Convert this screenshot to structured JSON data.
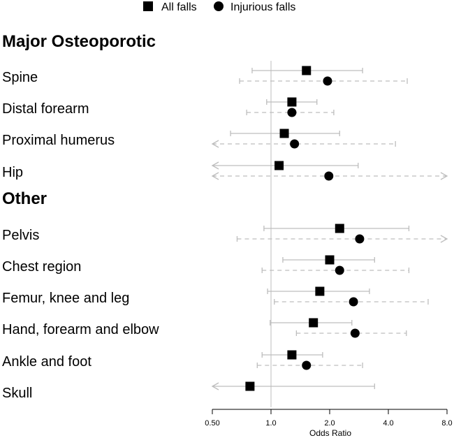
{
  "chart_data": {
    "type": "forest",
    "xlabel": "Odds Ratio",
    "x_scale": "log2",
    "xlim": [
      0.5,
      8.0
    ],
    "x_ticks": [
      {
        "value": 0.5,
        "label": "0.50"
      },
      {
        "value": 1.0,
        "label": "1.0"
      },
      {
        "value": 2.0,
        "label": "2.0"
      },
      {
        "value": 4.0,
        "label": "4.0"
      },
      {
        "value": 8.0,
        "label": "8.0"
      }
    ],
    "reference_line": 1.0,
    "legend": [
      {
        "name": "All falls",
        "marker": "square"
      },
      {
        "name": "Injurious falls",
        "marker": "circle"
      }
    ],
    "groups": [
      {
        "heading": "Major Osteoporotic",
        "rows": [
          {
            "label": "Spine",
            "all": {
              "or": 1.52,
              "lo": 0.8,
              "hi": 2.95
            },
            "injurious": {
              "or": 1.95,
              "lo": 0.69,
              "hi": 5.0
            }
          },
          {
            "label": "Distal forearm",
            "all": {
              "or": 1.28,
              "lo": 0.95,
              "hi": 1.72
            },
            "injurious": {
              "or": 1.28,
              "lo": 0.75,
              "hi": 2.1
            }
          },
          {
            "label": "Proximal humerus",
            "all": {
              "or": 1.17,
              "lo": 0.62,
              "hi": 2.25
            },
            "injurious": {
              "or": 1.32,
              "lo": 0.5,
              "hi": 4.35
            }
          },
          {
            "label": "Hip",
            "all": {
              "or": 1.1,
              "lo": 0.5,
              "hi": 2.8
            },
            "injurious": {
              "or": 1.98,
              "lo": 0.5,
              "hi": 8.0
            }
          }
        ]
      },
      {
        "heading": "Other",
        "rows": [
          {
            "label": "Pelvis",
            "all": {
              "or": 2.25,
              "lo": 0.92,
              "hi": 5.1
            },
            "injurious": {
              "or": 2.85,
              "lo": 0.67,
              "hi": 8.0
            }
          },
          {
            "label": "Chest region",
            "all": {
              "or": 2.0,
              "lo": 1.15,
              "hi": 3.4
            },
            "injurious": {
              "or": 2.25,
              "lo": 0.9,
              "hi": 5.1
            }
          },
          {
            "label": "Femur, knee and leg",
            "all": {
              "or": 1.78,
              "lo": 0.96,
              "hi": 3.2
            },
            "injurious": {
              "or": 2.65,
              "lo": 1.04,
              "hi": 6.4
            }
          },
          {
            "label": "Hand, forearm and elbow",
            "all": {
              "or": 1.65,
              "lo": 0.99,
              "hi": 2.6
            },
            "injurious": {
              "or": 2.7,
              "lo": 1.35,
              "hi": 4.95
            }
          },
          {
            "label": "Ankle and foot",
            "all": {
              "or": 1.28,
              "lo": 0.9,
              "hi": 1.84
            },
            "injurious": {
              "or": 1.52,
              "lo": 0.85,
              "hi": 2.95
            }
          },
          {
            "label": "Skull",
            "all": {
              "or": 0.78,
              "lo": 0.5,
              "hi": 3.4
            },
            "injurious": null
          }
        ]
      }
    ]
  },
  "colors": {
    "marker": "#000000",
    "ci_solid": "#bdbdbd",
    "ci_dashed": "#bdbdbd",
    "reference": "#c8c8c8",
    "text": "#000000"
  }
}
